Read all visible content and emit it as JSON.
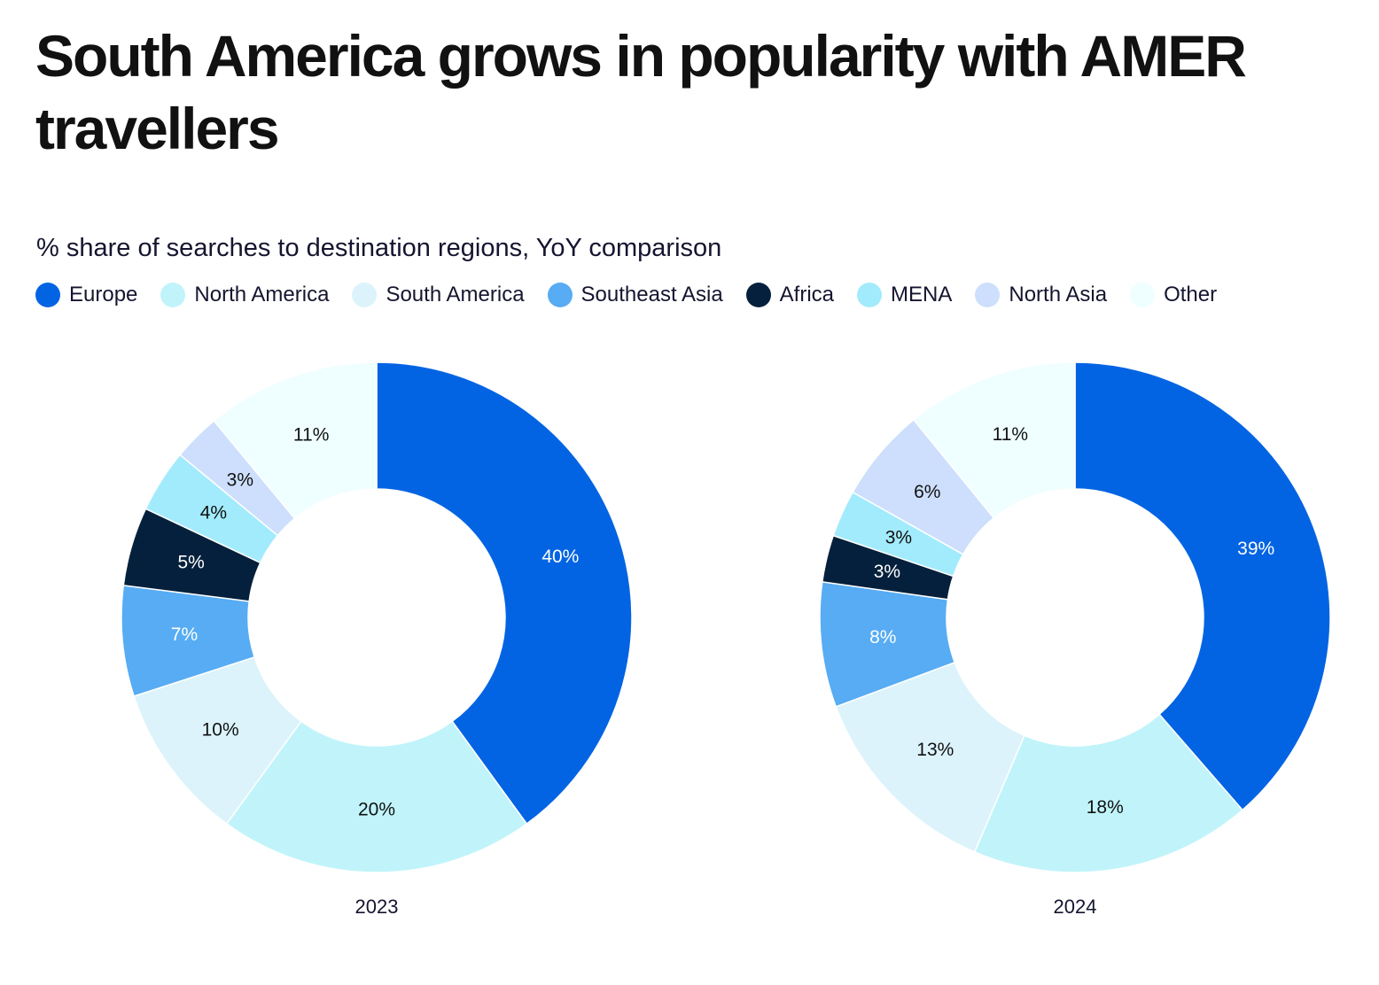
{
  "title": "South America grows in popularity with AMER travellers",
  "subtitle": "% share of searches to destination regions, YoY comparison",
  "legend": [
    {
      "label": "Europe",
      "color": "#0364e3"
    },
    {
      "label": "North America",
      "color": "#c0f4fa"
    },
    {
      "label": "South America",
      "color": "#dcf3fb"
    },
    {
      "label": "Southeast Asia",
      "color": "#57acf3"
    },
    {
      "label": "Africa",
      "color": "#05203c"
    },
    {
      "label": "MENA",
      "color": "#a2ebfc"
    },
    {
      "label": "North Asia",
      "color": "#cddffc"
    },
    {
      "label": "Other",
      "color": "#effeff"
    }
  ],
  "chart_data": [
    {
      "type": "pie",
      "variant": "donut",
      "title": "2023",
      "categories": [
        "Europe",
        "North America",
        "South America",
        "Southeast Asia",
        "Africa",
        "MENA",
        "North Asia",
        "Other"
      ],
      "values": [
        40,
        20,
        10,
        7,
        5,
        4,
        3,
        11
      ],
      "labels": [
        "40%",
        "20%",
        "10%",
        "7%",
        "5%",
        "4%",
        "3%",
        "11%"
      ],
      "label_colors": [
        "#ffffff",
        "#111111",
        "#111111",
        "#ffffff",
        "#ffffff",
        "#111111",
        "#111111",
        "#111111"
      ],
      "unit": "%"
    },
    {
      "type": "pie",
      "variant": "donut",
      "title": "2024",
      "categories": [
        "Europe",
        "North America",
        "South America",
        "Southeast Asia",
        "Africa",
        "MENA",
        "North Asia",
        "Other"
      ],
      "values": [
        39,
        18,
        13,
        8,
        3,
        3,
        6,
        11
      ],
      "labels": [
        "39%",
        "18%",
        "13%",
        "8%",
        "3%",
        "3%",
        "6%",
        "11%"
      ],
      "label_colors": [
        "#ffffff",
        "#111111",
        "#111111",
        "#ffffff",
        "#ffffff",
        "#111111",
        "#111111",
        "#111111"
      ],
      "unit": "%"
    }
  ]
}
